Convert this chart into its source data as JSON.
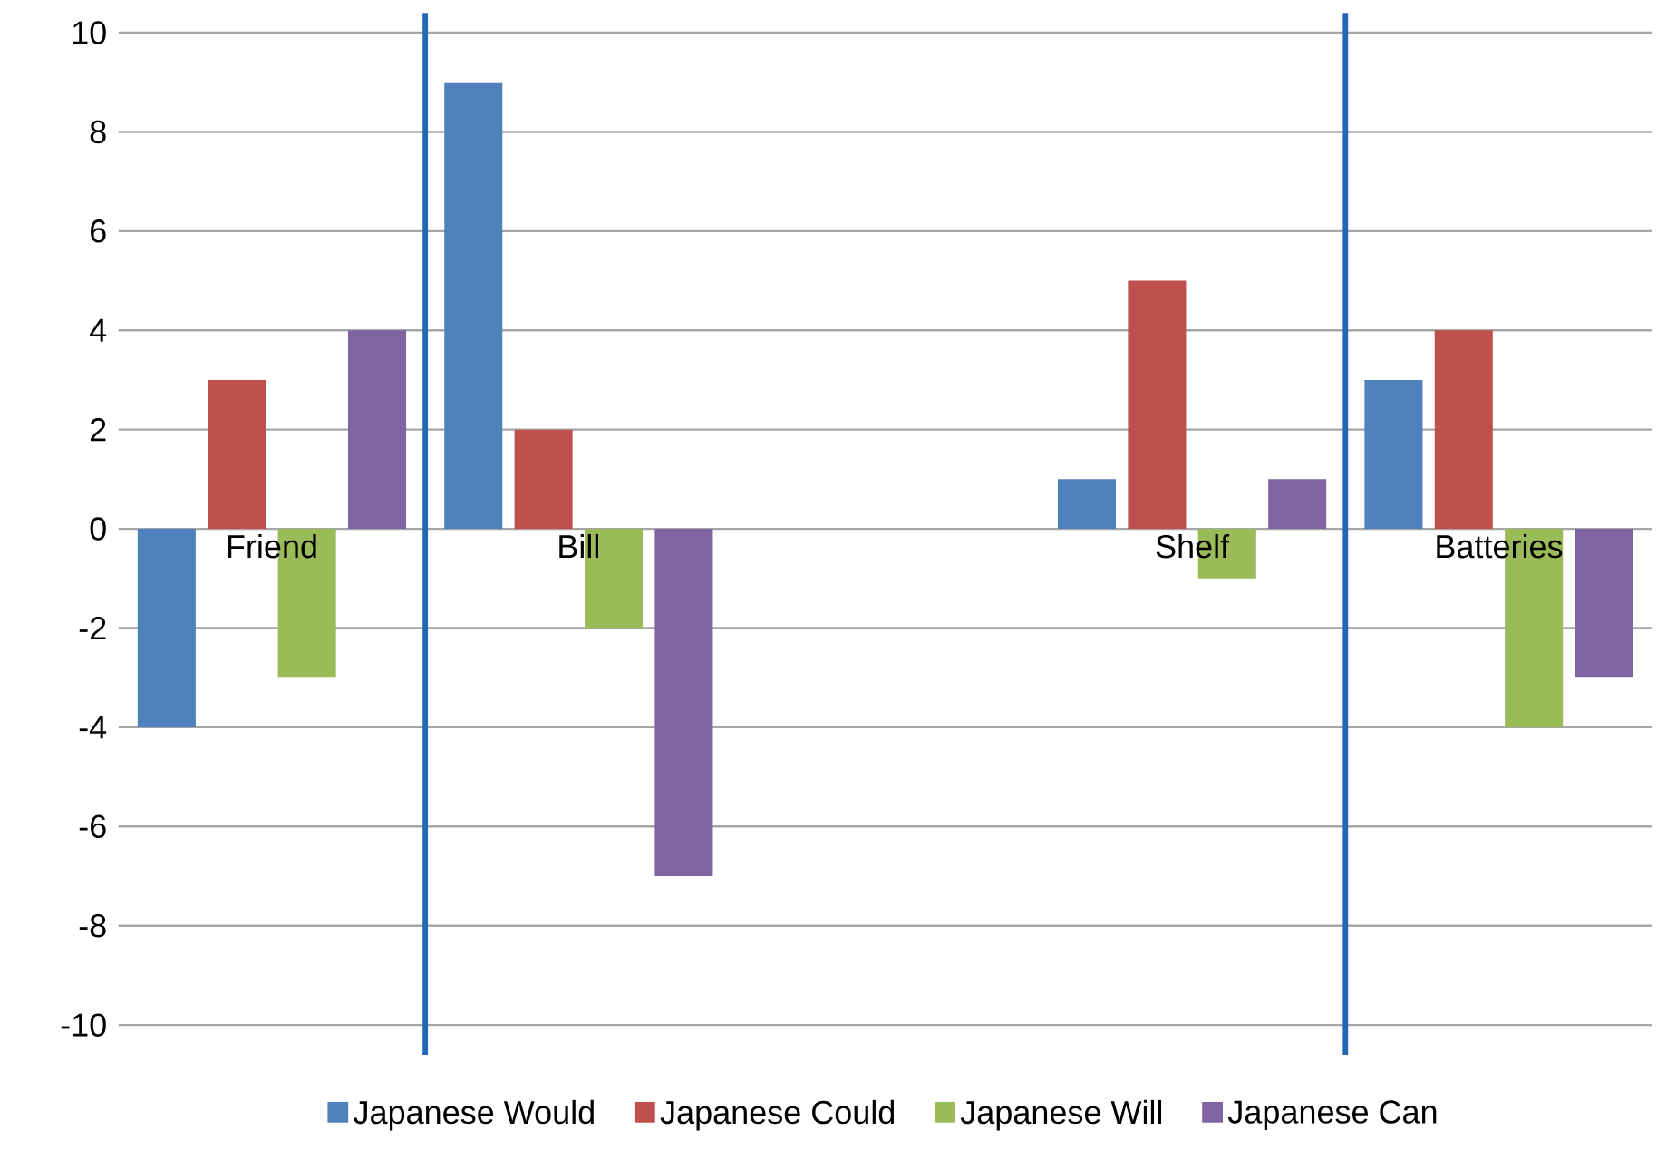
{
  "chart_data": {
    "type": "bar",
    "categories": [
      "Friend",
      "Bill",
      null,
      "Shelf",
      "Batteries"
    ],
    "series": [
      {
        "name": "Japanese Would",
        "color": "#4f81bd",
        "values": [
          -4,
          9,
          null,
          1,
          3
        ]
      },
      {
        "name": "Japanese Could",
        "color": "#c0504d",
        "values": [
          3,
          2,
          null,
          5,
          4
        ]
      },
      {
        "name": "Japanese Will",
        "color": "#9bbb59",
        "values": [
          -3,
          -2,
          null,
          -1,
          -4
        ]
      },
      {
        "name": "Japanese Can",
        "color": "#8064a2",
        "values": [
          4,
          -7,
          null,
          1,
          -3
        ]
      }
    ],
    "ylim": [
      -10,
      10
    ],
    "yticks": [
      -10,
      -8,
      -6,
      -4,
      -2,
      0,
      2,
      4,
      6,
      8,
      10
    ],
    "grid": "y",
    "legend": "bottom"
  }
}
